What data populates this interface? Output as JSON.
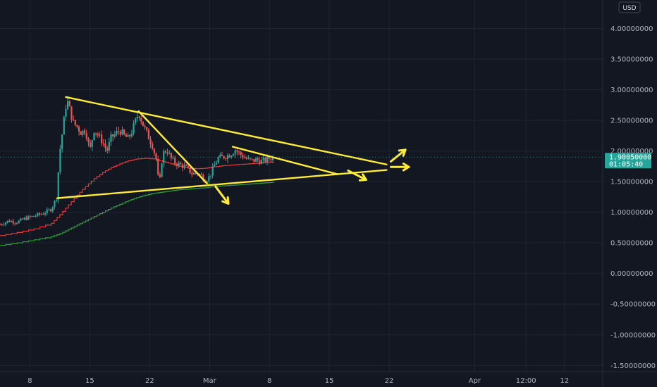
{
  "chart_data": {
    "type": "candlestick",
    "currency": "USD",
    "colors": {
      "background": "#131722",
      "grid": "#1f2431",
      "up": "#26a69a",
      "down": "#ef5350",
      "drawing": "#ffeb3b",
      "ma_fast": "#e53935",
      "ma_slow": "#2e9f3a",
      "price_tag": "#26a69a"
    },
    "y_axis": {
      "ylim": [
        -1.6,
        4.35
      ],
      "ticks": [
        {
          "value": 4.0,
          "label": "4.00000000"
        },
        {
          "value": 3.5,
          "label": "3.50000000"
        },
        {
          "value": 3.0,
          "label": "3.00000000"
        },
        {
          "value": 2.5,
          "label": "2.50000000"
        },
        {
          "value": 2.0,
          "label": "2.00000000"
        },
        {
          "value": 1.5,
          "label": "1.50000000"
        },
        {
          "value": 1.0,
          "label": "1.00000000"
        },
        {
          "value": 0.5,
          "label": "0.50000000"
        },
        {
          "value": 0.0,
          "label": "0.00000000"
        },
        {
          "value": -0.5,
          "label": "-0.50000000"
        },
        {
          "value": -1.0,
          "label": "-1.00000000"
        },
        {
          "value": -1.5,
          "label": "-1.50000000"
        }
      ]
    },
    "x_axis": {
      "xlim": [
        0,
        60
      ],
      "ticks": [
        {
          "value": 3.5,
          "label": "8"
        },
        {
          "value": 10.5,
          "label": "15"
        },
        {
          "value": 17.5,
          "label": "22"
        },
        {
          "value": 24.5,
          "label": "Mar"
        },
        {
          "value": 31.5,
          "label": "8"
        },
        {
          "value": 38.5,
          "label": "15"
        },
        {
          "value": 45.5,
          "label": "22"
        },
        {
          "value": 55.5,
          "label": "Apr"
        },
        {
          "value": 61.5,
          "label": "12:00"
        },
        {
          "value": 66.0,
          "label": "12"
        }
      ]
    },
    "last_price": {
      "value": 1.9005,
      "label": "1.90050000",
      "countdown": "01:05:40"
    },
    "trendlines": [
      {
        "x1": 7.7,
        "y1": 2.88,
        "x2": 45.2,
        "y2": 1.78
      },
      {
        "x1": 6.7,
        "y1": 1.23,
        "x2": 45.2,
        "y2": 1.69
      },
      {
        "x1": 16.2,
        "y1": 2.65,
        "x2": 24.2,
        "y2": 1.47
      },
      {
        "x1": 27.2,
        "y1": 2.07,
        "x2": 39.5,
        "y2": 1.62
      }
    ],
    "arrows": [
      {
        "x1": 25.2,
        "y1": 1.42,
        "x2": 26.7,
        "y2": 1.14
      },
      {
        "x1": 40.7,
        "y1": 1.68,
        "x2": 42.8,
        "y2": 1.53
      },
      {
        "x1": 45.7,
        "y1": 1.83,
        "x2": 47.4,
        "y2": 2.02
      },
      {
        "x1": 45.7,
        "y1": 1.74,
        "x2": 47.8,
        "y2": 1.74
      }
    ],
    "ma_fast": [
      {
        "x": 0,
        "y": 0.62
      },
      {
        "x": 2,
        "y": 0.67
      },
      {
        "x": 4,
        "y": 0.73
      },
      {
        "x": 6,
        "y": 0.82
      },
      {
        "x": 7,
        "y": 0.96
      },
      {
        "x": 8,
        "y": 1.12
      },
      {
        "x": 9,
        "y": 1.28
      },
      {
        "x": 10,
        "y": 1.42
      },
      {
        "x": 11,
        "y": 1.55
      },
      {
        "x": 12,
        "y": 1.65
      },
      {
        "x": 13,
        "y": 1.73
      },
      {
        "x": 14,
        "y": 1.79
      },
      {
        "x": 15,
        "y": 1.84
      },
      {
        "x": 16,
        "y": 1.87
      },
      {
        "x": 17,
        "y": 1.88
      },
      {
        "x": 18,
        "y": 1.87
      },
      {
        "x": 19,
        "y": 1.83
      },
      {
        "x": 20,
        "y": 1.79
      },
      {
        "x": 21,
        "y": 1.75
      },
      {
        "x": 22,
        "y": 1.72
      },
      {
        "x": 23,
        "y": 1.71
      },
      {
        "x": 24,
        "y": 1.72
      },
      {
        "x": 25,
        "y": 1.74
      },
      {
        "x": 26,
        "y": 1.76
      },
      {
        "x": 27,
        "y": 1.77
      },
      {
        "x": 28,
        "y": 1.78
      },
      {
        "x": 29,
        "y": 1.79
      },
      {
        "x": 30,
        "y": 1.8
      },
      {
        "x": 31,
        "y": 1.81
      },
      {
        "x": 32,
        "y": 1.82
      }
    ],
    "ma_slow": [
      {
        "x": 0,
        "y": 0.46
      },
      {
        "x": 2,
        "y": 0.5
      },
      {
        "x": 4,
        "y": 0.55
      },
      {
        "x": 6,
        "y": 0.6
      },
      {
        "x": 7,
        "y": 0.65
      },
      {
        "x": 8,
        "y": 0.72
      },
      {
        "x": 9,
        "y": 0.79
      },
      {
        "x": 10,
        "y": 0.86
      },
      {
        "x": 11,
        "y": 0.93
      },
      {
        "x": 12,
        "y": 1.0
      },
      {
        "x": 13,
        "y": 1.07
      },
      {
        "x": 14,
        "y": 1.13
      },
      {
        "x": 15,
        "y": 1.19
      },
      {
        "x": 16,
        "y": 1.24
      },
      {
        "x": 17,
        "y": 1.28
      },
      {
        "x": 18,
        "y": 1.31
      },
      {
        "x": 19,
        "y": 1.33
      },
      {
        "x": 20,
        "y": 1.35
      },
      {
        "x": 21,
        "y": 1.37
      },
      {
        "x": 22,
        "y": 1.38
      },
      {
        "x": 23,
        "y": 1.39
      },
      {
        "x": 24,
        "y": 1.4
      },
      {
        "x": 25,
        "y": 1.42
      },
      {
        "x": 26,
        "y": 1.43
      },
      {
        "x": 27,
        "y": 1.44
      },
      {
        "x": 28,
        "y": 1.45
      },
      {
        "x": 29,
        "y": 1.46
      },
      {
        "x": 30,
        "y": 1.47
      },
      {
        "x": 31,
        "y": 1.48
      },
      {
        "x": 32,
        "y": 1.49
      }
    ],
    "price_path": [
      {
        "x": 0,
        "y": 0.8
      },
      {
        "x": 1,
        "y": 0.86
      },
      {
        "x": 2,
        "y": 0.84
      },
      {
        "x": 3,
        "y": 0.9
      },
      {
        "x": 4,
        "y": 0.94
      },
      {
        "x": 5,
        "y": 0.98
      },
      {
        "x": 6,
        "y": 1.05
      },
      {
        "x": 6.6,
        "y": 1.24
      },
      {
        "x": 7.0,
        "y": 2.0
      },
      {
        "x": 7.5,
        "y": 2.52
      },
      {
        "x": 7.8,
        "y": 2.85
      },
      {
        "x": 8.2,
        "y": 2.65
      },
      {
        "x": 8.6,
        "y": 2.45
      },
      {
        "x": 9.0,
        "y": 2.4
      },
      {
        "x": 9.5,
        "y": 2.3
      },
      {
        "x": 10.0,
        "y": 2.35
      },
      {
        "x": 10.5,
        "y": 2.0
      },
      {
        "x": 11.0,
        "y": 2.35
      },
      {
        "x": 11.5,
        "y": 2.25
      },
      {
        "x": 12.0,
        "y": 2.15
      },
      {
        "x": 12.5,
        "y": 2.0
      },
      {
        "x": 13.0,
        "y": 2.22
      },
      {
        "x": 13.5,
        "y": 2.28
      },
      {
        "x": 14.0,
        "y": 2.34
      },
      {
        "x": 14.5,
        "y": 2.25
      },
      {
        "x": 15.0,
        "y": 2.2
      },
      {
        "x": 15.5,
        "y": 2.35
      },
      {
        "x": 16.2,
        "y": 2.63
      },
      {
        "x": 16.8,
        "y": 2.4
      },
      {
        "x": 17.3,
        "y": 2.25
      },
      {
        "x": 17.8,
        "y": 2.1
      },
      {
        "x": 18.3,
        "y": 1.85
      },
      {
        "x": 18.6,
        "y": 1.4
      },
      {
        "x": 19.0,
        "y": 1.95
      },
      {
        "x": 19.5,
        "y": 2.02
      },
      {
        "x": 20.0,
        "y": 1.88
      },
      {
        "x": 20.5,
        "y": 1.8
      },
      {
        "x": 21.0,
        "y": 1.78
      },
      {
        "x": 21.5,
        "y": 1.75
      },
      {
        "x": 22.0,
        "y": 1.7
      },
      {
        "x": 22.5,
        "y": 1.62
      },
      {
        "x": 23.0,
        "y": 1.65
      },
      {
        "x": 23.5,
        "y": 1.6
      },
      {
        "x": 24.0,
        "y": 1.52
      },
      {
        "x": 24.5,
        "y": 1.58
      },
      {
        "x": 25.0,
        "y": 1.75
      },
      {
        "x": 25.5,
        "y": 1.88
      },
      {
        "x": 26.0,
        "y": 1.9
      },
      {
        "x": 26.5,
        "y": 1.92
      },
      {
        "x": 27.0,
        "y": 1.95
      },
      {
        "x": 27.5,
        "y": 2.02
      },
      {
        "x": 28.0,
        "y": 1.96
      },
      {
        "x": 28.5,
        "y": 1.9
      },
      {
        "x": 29.0,
        "y": 1.86
      },
      {
        "x": 29.5,
        "y": 1.84
      },
      {
        "x": 30.0,
        "y": 1.86
      },
      {
        "x": 30.5,
        "y": 1.83
      },
      {
        "x": 31.0,
        "y": 1.85
      },
      {
        "x": 31.5,
        "y": 1.88
      },
      {
        "x": 32.0,
        "y": 1.9
      }
    ]
  }
}
